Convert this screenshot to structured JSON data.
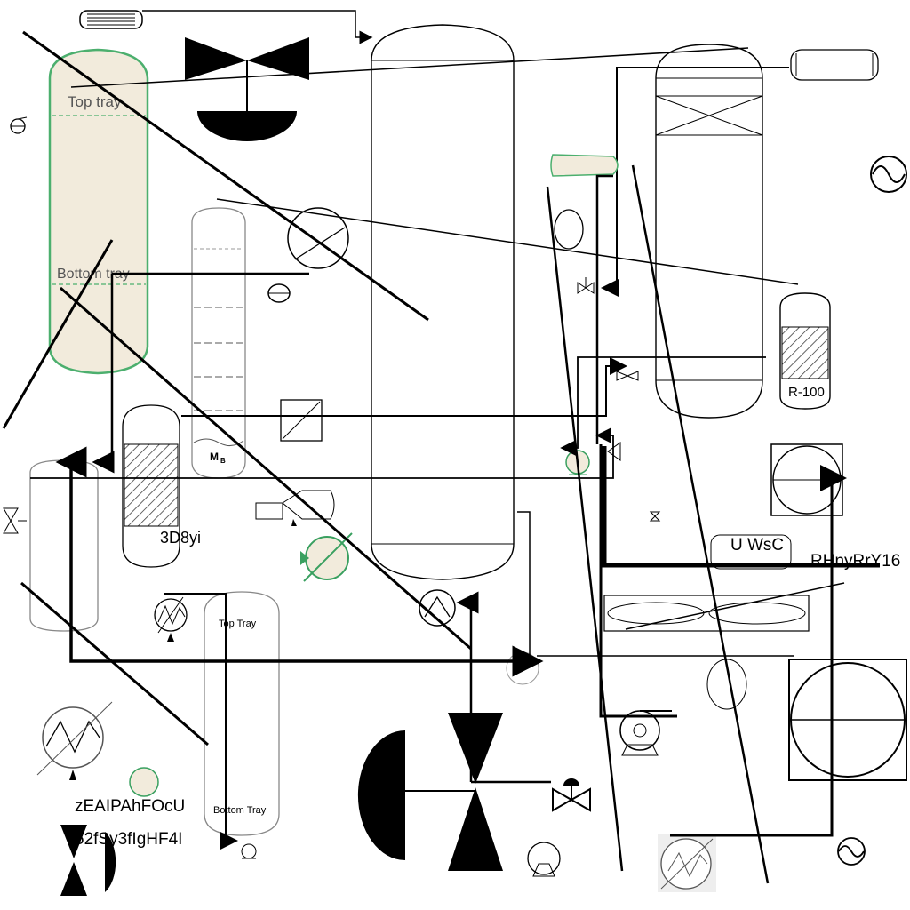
{
  "labels": {
    "top_tray_1": "Top tray",
    "bottom_tray_1": "Bottom tray",
    "top_tray_2": "Top Tray",
    "bottom_tray_2": "Bottom Tray",
    "reactor_tag": "R-100",
    "mb": "M",
    "mb_sub": "B",
    "code_1": "3D8yi",
    "code_2": "U WsC",
    "code_3": "RHnyRrY16",
    "code_4": "zEAIPAhFOcU",
    "code_5": "52fSy3fIgHF4I"
  },
  "colors": {
    "line": "#000000",
    "vessel_fill": "#f2ebdc",
    "vessel_stroke": "#4caf6e",
    "equipment_green": "#3aa060",
    "hatch": "#333333"
  }
}
